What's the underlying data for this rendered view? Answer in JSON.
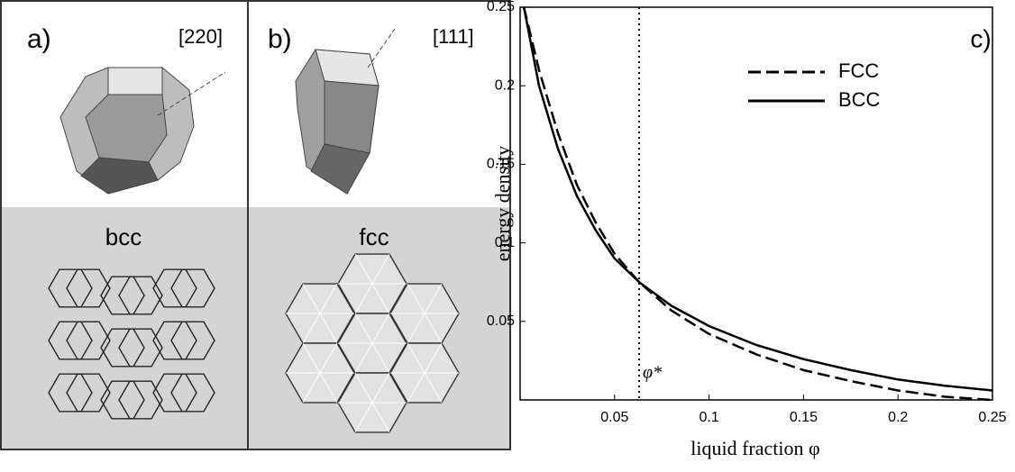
{
  "panels": {
    "a": {
      "label": "a)",
      "direction": "[220]",
      "lattice": "bcc"
    },
    "b": {
      "label": "b)",
      "direction": "[111]",
      "lattice": "fcc"
    }
  },
  "chart_data": {
    "type": "line",
    "panel_label": "c)",
    "xlabel": "liquid fraction φ",
    "ylabel": "energy density",
    "x": [
      0.002,
      0.01,
      0.02,
      0.03,
      0.04,
      0.05,
      0.063,
      0.08,
      0.1,
      0.125,
      0.15,
      0.175,
      0.2,
      0.225,
      0.25
    ],
    "series": [
      {
        "name": "FCC",
        "color": "#000000",
        "line_style": "dashed",
        "values": [
          0.25,
          0.21,
          0.17,
          0.137,
          0.113,
          0.093,
          0.075,
          0.057,
          0.042,
          0.029,
          0.019,
          0.012,
          0.006,
          0.002,
          0.0
        ]
      },
      {
        "name": "BCC",
        "color": "#000000",
        "line_style": "solid",
        "values": [
          0.25,
          0.2,
          0.16,
          0.13,
          0.108,
          0.09,
          0.075,
          0.06,
          0.047,
          0.035,
          0.026,
          0.019,
          0.013,
          0.009,
          0.006
        ]
      }
    ],
    "xlim": [
      0,
      0.25
    ],
    "ylim": [
      0,
      0.25
    ],
    "xticks": [
      0.05,
      0.1,
      0.15,
      0.2,
      0.25
    ],
    "yticks": [
      0.05,
      0.1,
      0.15,
      0.2,
      0.25
    ],
    "vline": {
      "x": 0.063,
      "label": "φ*"
    },
    "legend": "upper right",
    "grid": false
  }
}
